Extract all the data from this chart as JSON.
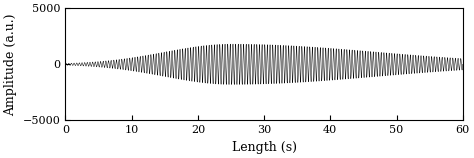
{
  "title": "",
  "xlabel": "Length (s)",
  "ylabel": "Amplitude (a.u.)",
  "xlim": [
    0,
    60
  ],
  "ylim": [
    -5000,
    5000
  ],
  "xticks": [
    0,
    10,
    20,
    30,
    40,
    50,
    60
  ],
  "yticks": [
    -5000,
    0,
    5000
  ],
  "line_color": "#000000",
  "background_color": "#ffffff",
  "freq_osc": 2.5,
  "peak_time": 25,
  "envelope_rise_sigma": 10,
  "envelope_fall_sigma": 22,
  "peak_amplitude": 1800,
  "total_time": 60,
  "sample_rate": 2000,
  "linewidth": 0.35,
  "figsize": [
    4.74,
    1.58
  ],
  "dpi": 100,
  "tick_fontsize": 8,
  "label_fontsize": 9
}
